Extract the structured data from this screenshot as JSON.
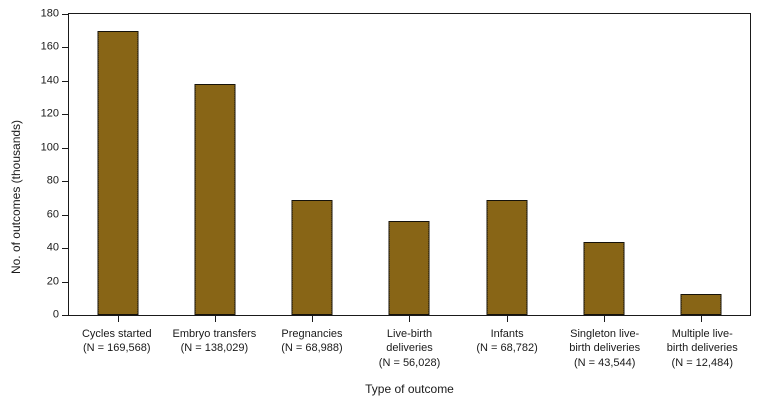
{
  "chart_data": {
    "type": "bar",
    "title": "",
    "xlabel": "Type of outcome",
    "ylabel": "No. of outcomes (thousands)",
    "ylim": [
      0,
      180
    ],
    "ytick_step": 20,
    "yticks": [
      0,
      20,
      40,
      60,
      80,
      100,
      120,
      140,
      160,
      180
    ],
    "grid": false,
    "legend": null,
    "bars": [
      {
        "category": "Cycles started",
        "n_label": "(N = 169,568)",
        "n": 169568,
        "value_thousands": 169.568
      },
      {
        "category": "Embryo transfers",
        "n_label": "(N = 138,029)",
        "n": 138029,
        "value_thousands": 138.029
      },
      {
        "category": "Pregnancies",
        "n_label": "(N = 68,988)",
        "n": 68988,
        "value_thousands": 68.988
      },
      {
        "category": "Live-birth\ndeliveries",
        "n_label": "(N = 56,028)",
        "n": 56028,
        "value_thousands": 56.028
      },
      {
        "category": "Infants",
        "n_label": "(N = 68,782)",
        "n": 68782,
        "value_thousands": 68.782
      },
      {
        "category": "Singleton live-\nbirth deliveries",
        "n_label": "(N = 43,544)",
        "n": 43544,
        "value_thousands": 43.544
      },
      {
        "category": "Multiple live-\nbirth deliveries",
        "n_label": "(N = 12,484)",
        "n": 12484,
        "value_thousands": 12.484
      }
    ],
    "colors": {
      "bar_fill": "#8a6517",
      "bar_fill_dark": "#6e520e",
      "bar_fill_light": "#a2781f",
      "bar_border": "#15120a",
      "axis": "#1a1a1a",
      "text": "#1a1a1a",
      "background": "#ffffff"
    }
  }
}
